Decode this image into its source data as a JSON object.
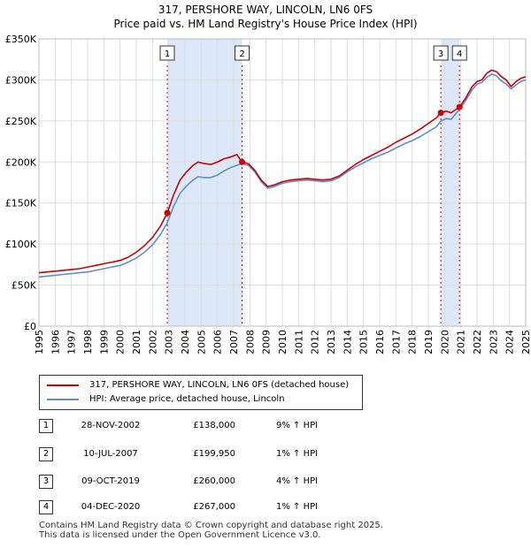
{
  "header": {
    "title": "317, PERSHORE WAY, LINCOLN, LN6 0FS",
    "subtitle": "Price paid vs. HM Land Registry's House Price Index (HPI)"
  },
  "colors": {
    "property": "#cc0000",
    "hpi": "#5b8fd0",
    "shade": "#dce7f8",
    "grid": "#dddddd"
  },
  "chart_data": {
    "type": "line",
    "title": "Price paid vs. HM Land Registry's House Price Index (HPI)",
    "xlabel": "",
    "ylabel": "",
    "xlim": [
      1995,
      2025
    ],
    "ylim": [
      0,
      350000
    ],
    "y_ticks": [
      0,
      50000,
      100000,
      150000,
      200000,
      250000,
      300000,
      350000
    ],
    "y_tick_labels": [
      "£0",
      "£50K",
      "£100K",
      "£150K",
      "£200K",
      "£250K",
      "£300K",
      "£350K"
    ],
    "x_ticks": [
      1995,
      1996,
      1997,
      1998,
      1999,
      2000,
      2001,
      2002,
      2003,
      2004,
      2005,
      2006,
      2007,
      2008,
      2009,
      2010,
      2011,
      2012,
      2013,
      2014,
      2015,
      2016,
      2017,
      2018,
      2019,
      2020,
      2021,
      2022,
      2023,
      2024,
      2025
    ],
    "x_tick_labels": [
      "1995",
      "1996",
      "1997",
      "1998",
      "1999",
      "2000",
      "2001",
      "2002",
      "2003",
      "2004",
      "2005",
      "2006",
      "2007",
      "2008",
      "2009",
      "2010",
      "2011",
      "2012",
      "2013",
      "2014",
      "2015",
      "2016",
      "2017",
      "2018",
      "2019",
      "2020",
      "2021",
      "2022",
      "2023",
      "2024",
      "2025"
    ],
    "grid": true,
    "series": [
      {
        "name": "317, PERSHORE WAY, LINCOLN, LN6 0FS (detached house)",
        "color": "#cc0000",
        "x": [
          1995.0,
          1995.5,
          1996.0,
          1996.5,
          1997.0,
          1997.5,
          1998.0,
          1998.5,
          1999.0,
          1999.5,
          2000.0,
          2000.5,
          2001.0,
          2001.5,
          2002.0,
          2002.5,
          2002.91,
          2003.3,
          2003.7,
          2004.1,
          2004.5,
          2004.8,
          2005.2,
          2005.6,
          2006.0,
          2006.4,
          2006.8,
          2007.2,
          2007.52,
          2007.9,
          2008.3,
          2008.7,
          2009.1,
          2009.5,
          2010.0,
          2010.5,
          2011.0,
          2011.5,
          2012.0,
          2012.5,
          2013.0,
          2013.5,
          2014.0,
          2014.5,
          2015.0,
          2015.5,
          2016.0,
          2016.5,
          2017.0,
          2017.5,
          2018.0,
          2018.5,
          2019.0,
          2019.5,
          2019.77,
          2020.1,
          2020.4,
          2020.92,
          2021.3,
          2021.7,
          2022.0,
          2022.3,
          2022.6,
          2022.9,
          2023.2,
          2023.5,
          2023.8,
          2024.1,
          2024.4,
          2024.7,
          2025.0
        ],
        "values": [
          65000,
          66000,
          67000,
          68000,
          69000,
          70000,
          72000,
          74000,
          76000,
          78000,
          80000,
          84000,
          90000,
          98000,
          108000,
          122000,
          138000,
          160000,
          178000,
          188000,
          196000,
          200000,
          198000,
          197000,
          200000,
          204000,
          206000,
          209000,
          199950,
          198000,
          190000,
          178000,
          170000,
          172000,
          176000,
          178000,
          179000,
          180000,
          179000,
          178000,
          179000,
          183000,
          190000,
          197000,
          203000,
          208000,
          213000,
          218000,
          224000,
          229000,
          234000,
          240000,
          247000,
          254000,
          260000,
          262000,
          260000,
          267000,
          278000,
          292000,
          298000,
          300000,
          308000,
          312000,
          310000,
          304000,
          300000,
          292000,
          298000,
          302000,
          304000
        ]
      },
      {
        "name": "HPI: Average price, detached house, Lincoln",
        "color": "#5b8fd0",
        "x": [
          1995.0,
          1995.5,
          1996.0,
          1996.5,
          1997.0,
          1997.5,
          1998.0,
          1998.5,
          1999.0,
          1999.5,
          2000.0,
          2000.5,
          2001.0,
          2001.5,
          2002.0,
          2002.5,
          2002.91,
          2003.3,
          2003.7,
          2004.1,
          2004.5,
          2004.8,
          2005.2,
          2005.6,
          2006.0,
          2006.4,
          2006.8,
          2007.2,
          2007.52,
          2007.9,
          2008.3,
          2008.7,
          2009.1,
          2009.5,
          2010.0,
          2010.5,
          2011.0,
          2011.5,
          2012.0,
          2012.5,
          2013.0,
          2013.5,
          2014.0,
          2014.5,
          2015.0,
          2015.5,
          2016.0,
          2016.5,
          2017.0,
          2017.5,
          2018.0,
          2018.5,
          2019.0,
          2019.5,
          2019.77,
          2020.1,
          2020.4,
          2020.92,
          2021.3,
          2021.7,
          2022.0,
          2022.3,
          2022.6,
          2022.9,
          2023.2,
          2023.5,
          2023.8,
          2024.1,
          2024.4,
          2024.7,
          2025.0
        ],
        "values": [
          60000,
          61000,
          62000,
          63000,
          64000,
          65000,
          66000,
          68000,
          70000,
          72000,
          74000,
          78000,
          83000,
          90000,
          99000,
          112000,
          126000,
          146000,
          162000,
          171000,
          178000,
          182000,
          181000,
          181000,
          184000,
          189000,
          193000,
          196000,
          198000,
          196000,
          188000,
          176000,
          168000,
          170000,
          174000,
          176000,
          177000,
          178000,
          177000,
          176000,
          177000,
          181000,
          188000,
          194000,
          199000,
          204000,
          208000,
          212000,
          217000,
          222000,
          226000,
          231000,
          237000,
          243000,
          250000,
          253000,
          252000,
          264000,
          275000,
          288000,
          295000,
          297000,
          303000,
          307000,
          305000,
          299000,
          295000,
          289000,
          294000,
          298000,
          300000
        ]
      }
    ],
    "shaded_periods": [
      [
        2002.91,
        2007.52
      ],
      [
        2019.77,
        2020.92
      ]
    ],
    "sales": [
      {
        "id": "1",
        "x": 2002.91,
        "value": 138000
      },
      {
        "id": "2",
        "x": 2007.52,
        "value": 199950
      },
      {
        "id": "3",
        "x": 2019.77,
        "value": 260000
      },
      {
        "id": "4",
        "x": 2020.92,
        "value": 267000
      }
    ]
  },
  "legend": {
    "property_label": "317, PERSHORE WAY, LINCOLN, LN6 0FS (detached house)",
    "hpi_label": "HPI: Average price, detached house, Lincoln"
  },
  "transactions": [
    {
      "id": "1",
      "date": "28-NOV-2002",
      "price": "£138,000",
      "hpi": "9% ↑ HPI"
    },
    {
      "id": "2",
      "date": "10-JUL-2007",
      "price": "£199,950",
      "hpi": "1% ↑ HPI"
    },
    {
      "id": "3",
      "date": "09-OCT-2019",
      "price": "£260,000",
      "hpi": "4% ↑ HPI"
    },
    {
      "id": "4",
      "date": "04-DEC-2020",
      "price": "£267,000",
      "hpi": "1% ↑ HPI"
    }
  ],
  "footer": {
    "line1": "Contains HM Land Registry data © Crown copyright and database right 2025.",
    "line2": "This data is licensed under the Open Government Licence v3.0."
  }
}
